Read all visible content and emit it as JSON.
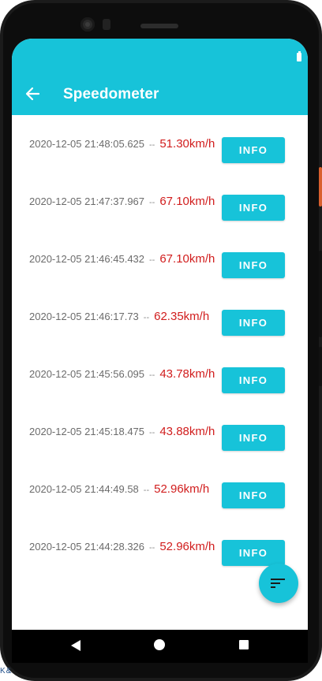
{
  "app": {
    "title": "Speedometer",
    "colors": {
      "primary": "#17c3d9",
      "speed": "#d11d1d"
    }
  },
  "toolbar": {
    "back_icon": "arrow-left-icon"
  },
  "records": [
    {
      "timestamp": "2020-12-05 21:48:05.625",
      "separator": "--",
      "speed": "51.30km/h",
      "button": "INFO"
    },
    {
      "timestamp": "2020-12-05 21:47:37.967",
      "separator": "--",
      "speed": "67.10km/h",
      "button": "INFO"
    },
    {
      "timestamp": "2020-12-05 21:46:45.432",
      "separator": "--",
      "speed": "67.10km/h",
      "button": "INFO"
    },
    {
      "timestamp": "2020-12-05 21:46:17.73",
      "separator": "--",
      "speed": "62.35km/h",
      "button": "INFO"
    },
    {
      "timestamp": "2020-12-05 21:45:56.095",
      "separator": "--",
      "speed": "43.78km/h",
      "button": "INFO"
    },
    {
      "timestamp": "2020-12-05 21:45:18.475",
      "separator": "--",
      "speed": "43.88km/h",
      "button": "INFO"
    },
    {
      "timestamp": "2020-12-05 21:44:49.58",
      "separator": "--",
      "speed": "52.96km/h",
      "button": "INFO"
    },
    {
      "timestamp": "2020-12-05 21:44:28.326",
      "separator": "--",
      "speed": "52.96km/h",
      "button": "INFO"
    }
  ],
  "fab": {
    "icon": "sort-icon"
  },
  "system_nav": {
    "back_icon": "nav-back-icon",
    "home_icon": "nav-home-icon",
    "recents_icon": "nav-recents-icon"
  },
  "corner_text": "K&"
}
